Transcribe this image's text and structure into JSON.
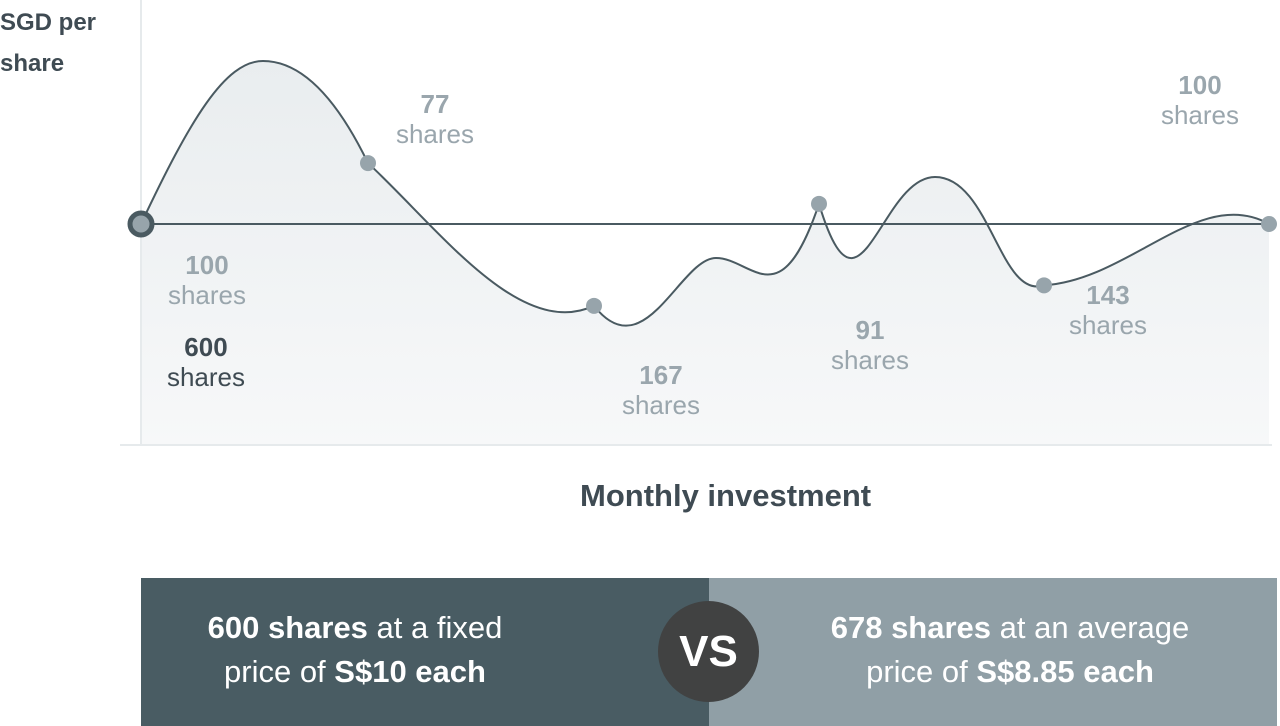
{
  "chart_data": {
    "type": "line",
    "ylabel_line1": "SGD per",
    "ylabel_line2": "share",
    "xlabel": "Monthly investment",
    "fixed_price_sgd": 10,
    "points": [
      {
        "month": 1,
        "shares": 100,
        "number": "100",
        "unit": "shares"
      },
      {
        "month": 2,
        "shares": 77,
        "number": "77",
        "unit": "shares"
      },
      {
        "month": 3,
        "shares": 167,
        "number": "167",
        "unit": "shares"
      },
      {
        "month": 4,
        "shares": 91,
        "number": "91",
        "unit": "shares"
      },
      {
        "month": 5,
        "shares": 143,
        "number": "143",
        "unit": "shares"
      },
      {
        "month": 6,
        "shares": 100,
        "number": "100",
        "unit": "shares"
      }
    ],
    "fixed_total": {
      "number": "600",
      "unit": "shares"
    },
    "colors": {
      "line": "#4a5a61",
      "marker": "#97a4ab",
      "dark_panel": "#495c63",
      "light_panel": "#909fa6",
      "vs_circle": "#414242"
    }
  },
  "comparison": {
    "left": {
      "bold1": "600 shares",
      "text1": " at a fixed",
      "text2": "price of ",
      "bold2": "S$10 each"
    },
    "vs": "VS",
    "right": {
      "bold1": "678 shares",
      "text1": " at an average",
      "text2": "price of ",
      "bold2": "S$8.85 each"
    }
  }
}
